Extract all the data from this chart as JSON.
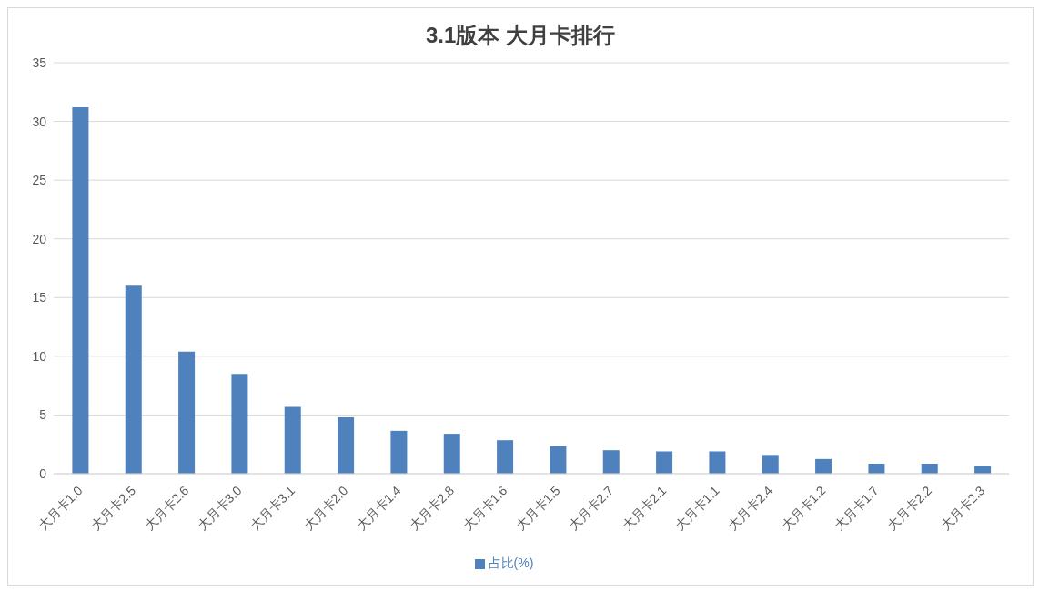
{
  "chart_data": {
    "type": "bar",
    "title": "3.1版本 大月卡排行",
    "categories": [
      "大月卡1.0",
      "大月卡2.5",
      "大月卡2.6",
      "大月卡3.0",
      "大月卡3.1",
      "大月卡2.0",
      "大月卡1.4",
      "大月卡2.8",
      "大月卡1.6",
      "大月卡1.5",
      "大月卡2.7",
      "大月卡2.1",
      "大月卡1.1",
      "大月卡2.4",
      "大月卡1.2",
      "大月卡1.7",
      "大月卡2.2",
      "大月卡2.3"
    ],
    "series": [
      {
        "name": "占比(%)",
        "color": "#4f81bd",
        "values": [
          31.2,
          16.0,
          10.4,
          8.5,
          5.7,
          4.8,
          3.65,
          3.4,
          2.85,
          2.35,
          2.0,
          1.9,
          1.9,
          1.6,
          1.25,
          0.85,
          0.85,
          0.67
        ]
      }
    ],
    "ylim": [
      0,
      35
    ],
    "yticks": [
      0,
      5,
      10,
      15,
      20,
      25,
      30,
      35
    ],
    "grid": "y",
    "legend": "bottom"
  }
}
